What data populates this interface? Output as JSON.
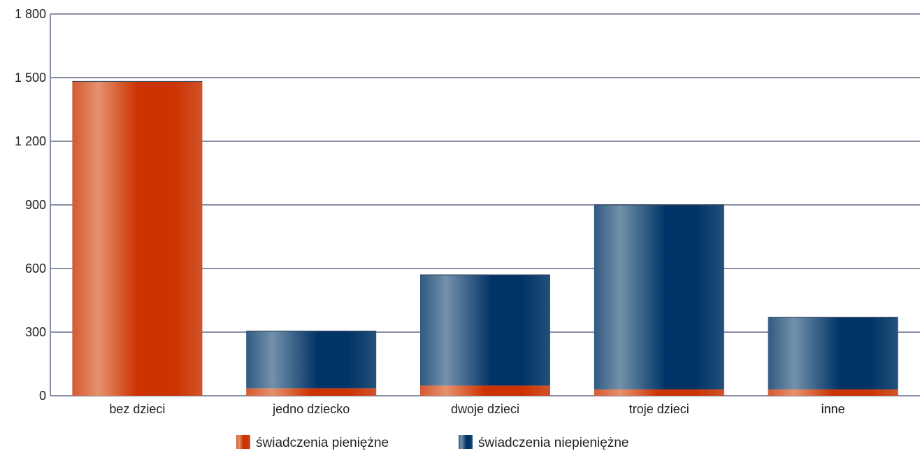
{
  "chart_data": {
    "type": "bar",
    "stacked": true,
    "categories": [
      "bez dzieci",
      "jedno dziecko",
      "dwoje dzieci",
      "troje dzieci",
      "inne"
    ],
    "series": [
      {
        "name": "świadczenia pieniężne",
        "values": [
          1482,
          35,
          48,
          30,
          30
        ],
        "color": "#cc3300"
      },
      {
        "name": "świadczenia niepieniężne",
        "values": [
          0,
          270,
          522,
          870,
          340
        ],
        "color": "#003366"
      }
    ],
    "ylim": [
      0,
      1800
    ],
    "yticks": [
      0,
      300,
      600,
      900,
      1200,
      1500,
      1800
    ],
    "ytick_labels": [
      "0",
      "300",
      "600",
      "900",
      "1 200",
      "1 500",
      "1 800"
    ],
    "grid": true,
    "legend_position": "bottom",
    "title": "",
    "xlabel": "",
    "ylabel": ""
  }
}
